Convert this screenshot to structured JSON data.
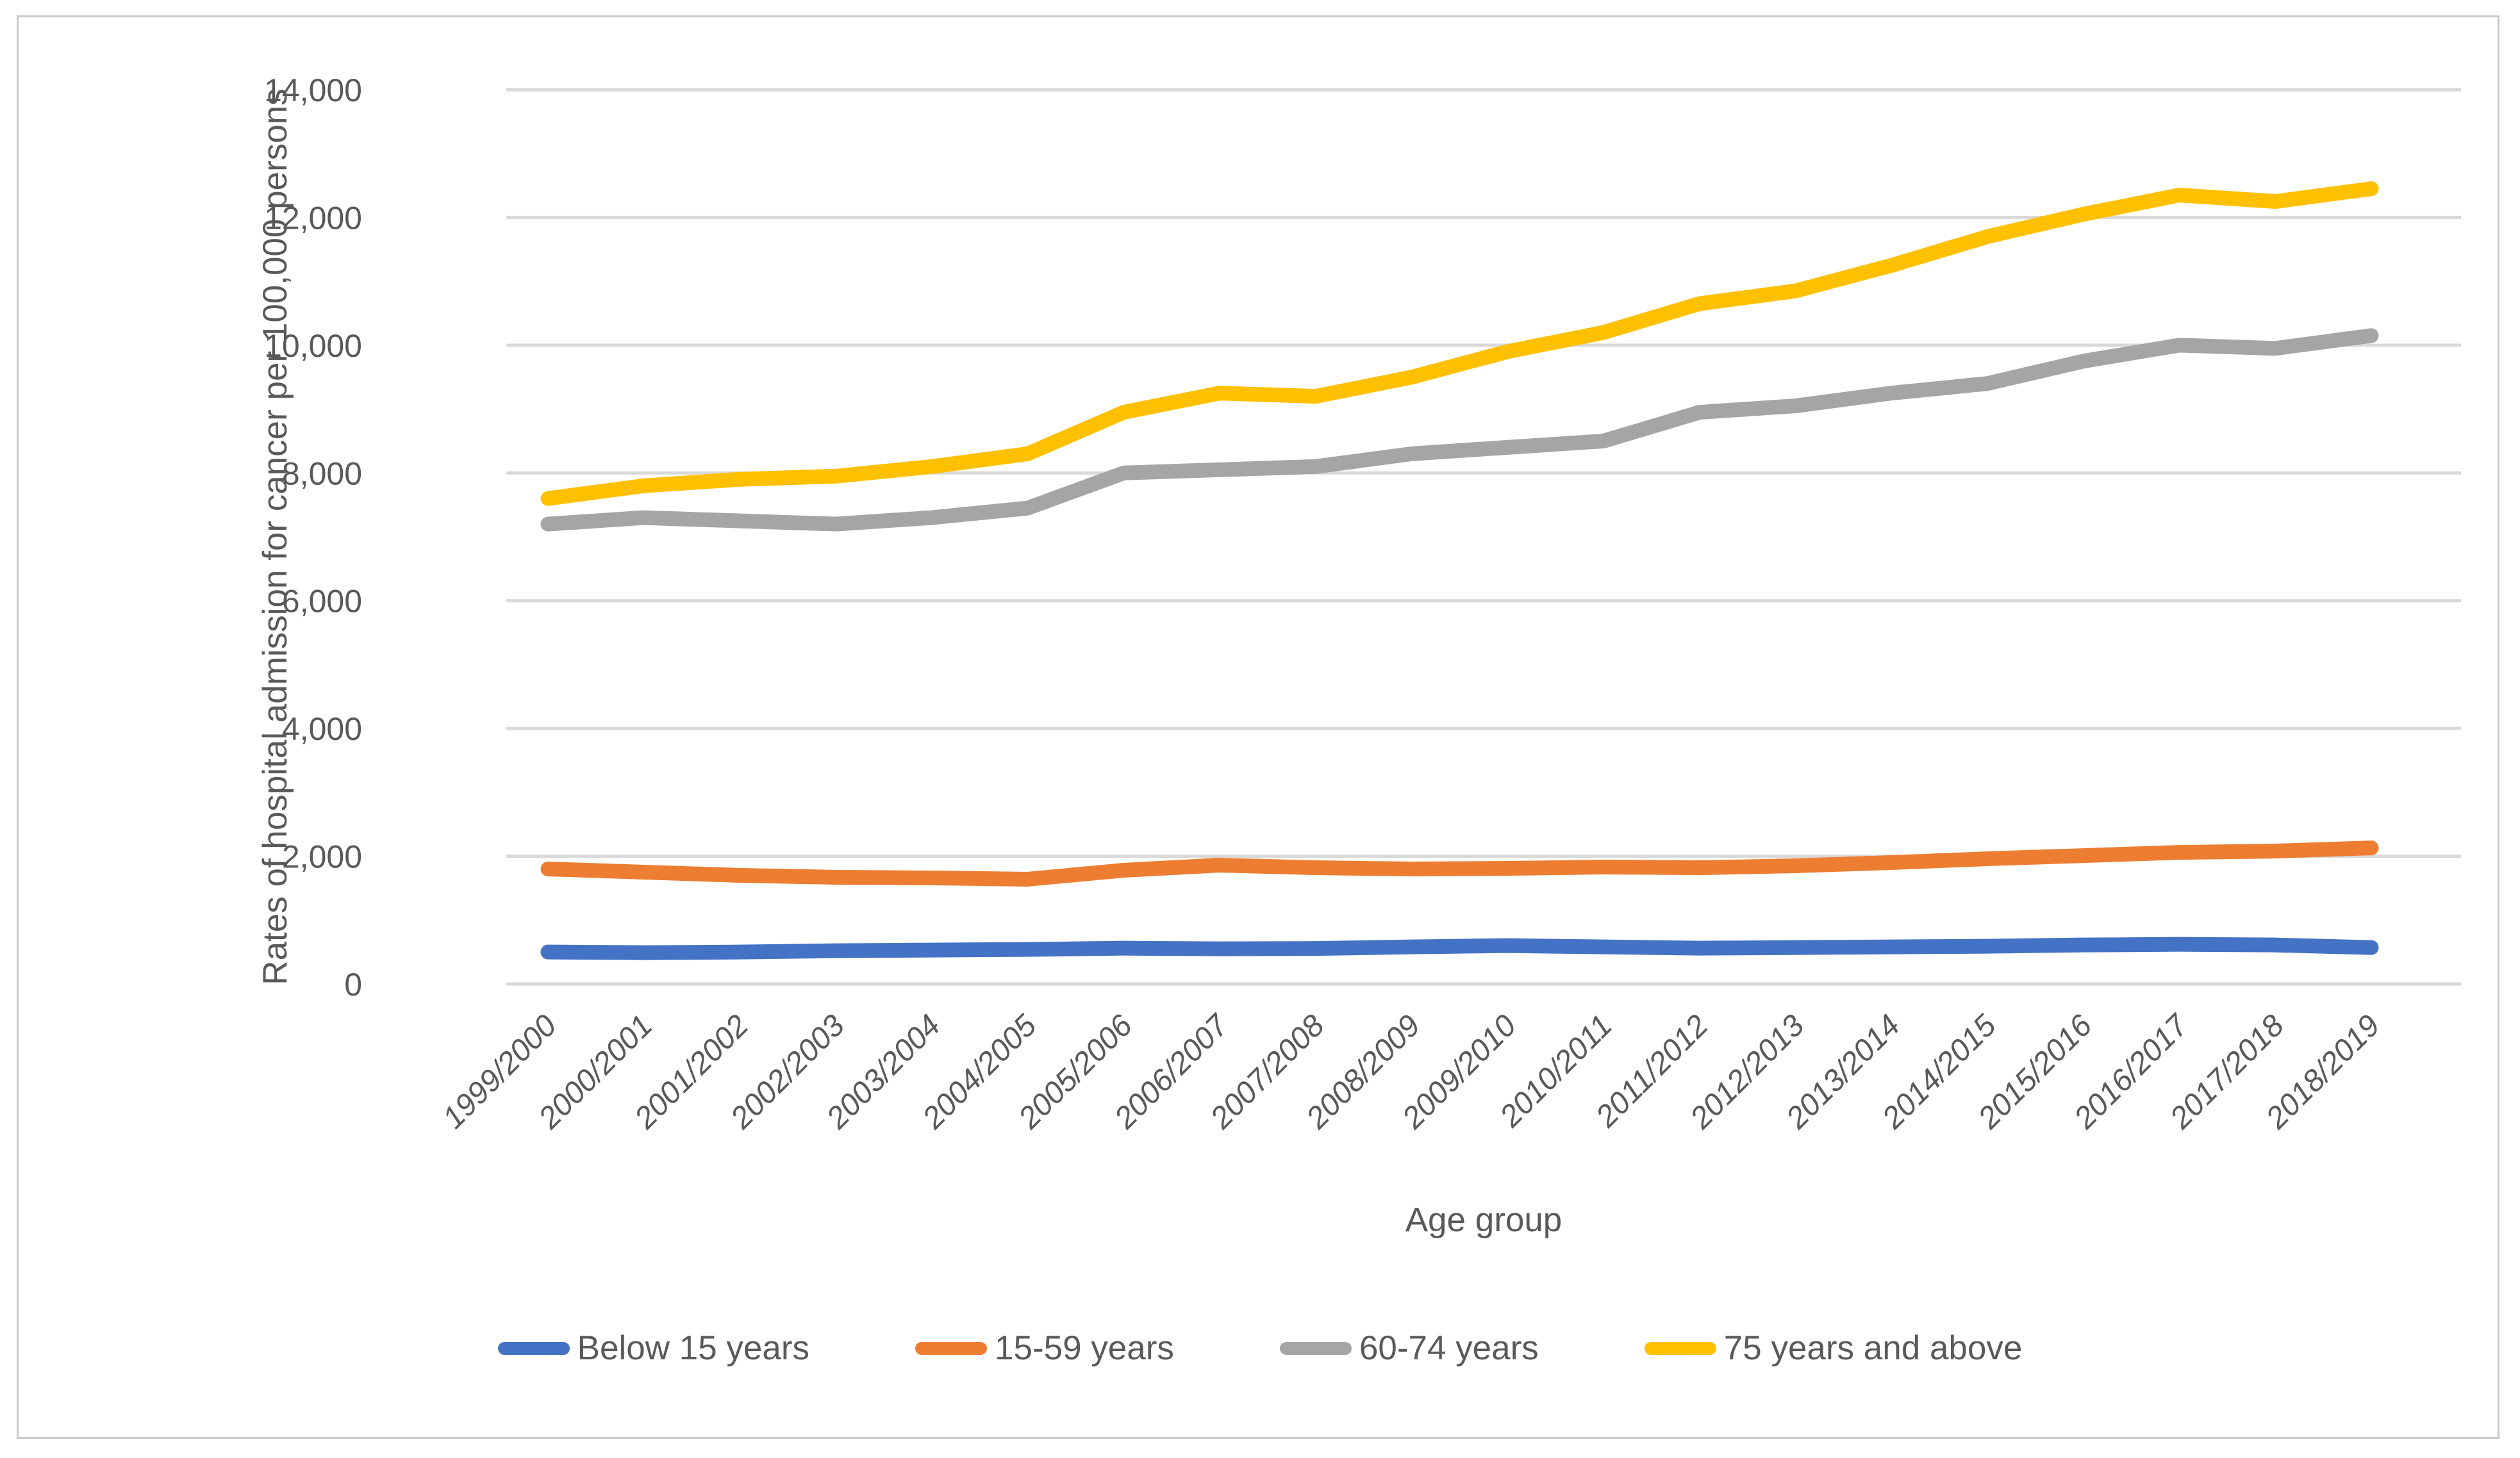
{
  "chart_data": {
    "type": "line",
    "title": "",
    "xlabel": "Age group",
    "ylabel": "Rates of hospital admission for cancer per 100,000 persons",
    "x_categories": [
      "1999/2000",
      "2000/2001",
      "2001/2002",
      "2002/2003",
      "2003/2004",
      "2004/2005",
      "2005/2006",
      "2006/2007",
      "2007/2008",
      "2008/2009",
      "2009/2010",
      "2010/2011",
      "2011/2012",
      "2012/2013",
      "2013/2014",
      "2014/2015",
      "2015/2016",
      "2016/2017",
      "2017/2018",
      "2018/2019"
    ],
    "ylim": [
      0,
      14000
    ],
    "ytick_step": 2000,
    "ytick_labels": [
      "0",
      "2,000",
      "4,000",
      "6,000",
      "8,000",
      "10,000",
      "12,000",
      "14,000"
    ],
    "grid": "horizontal",
    "legend_position": "bottom",
    "series": [
      {
        "name": "Below 15 years",
        "color": "#4472C4",
        "values": [
          500,
          490,
          500,
          520,
          530,
          540,
          560,
          550,
          555,
          580,
          600,
          580,
          560,
          570,
          580,
          590,
          610,
          620,
          610,
          570
        ]
      },
      {
        "name": "15-59 years",
        "color": "#ED7D31",
        "values": [
          1800,
          1750,
          1700,
          1670,
          1660,
          1640,
          1780,
          1860,
          1820,
          1800,
          1810,
          1830,
          1820,
          1850,
          1900,
          1960,
          2010,
          2060,
          2080,
          2130
        ]
      },
      {
        "name": "60-74 years",
        "color": "#A5A5A5",
        "values": [
          7200,
          7300,
          7250,
          7200,
          7300,
          7450,
          8000,
          8050,
          8100,
          8300,
          8400,
          8500,
          8950,
          9050,
          9250,
          9400,
          9750,
          10000,
          9950,
          10150
        ]
      },
      {
        "name": "75 years and above",
        "color": "#FFC000",
        "values": [
          7600,
          7800,
          7900,
          7950,
          8100,
          8300,
          8950,
          9250,
          9200,
          9500,
          9900,
          10200,
          10650,
          10850,
          11250,
          11700,
          12050,
          12350,
          12250,
          12450
        ]
      }
    ]
  },
  "colors": {
    "background": "#FFFFFF",
    "gridline": "#D9D9D9",
    "axis_text": "#595959",
    "border": "#C9C9C9"
  }
}
